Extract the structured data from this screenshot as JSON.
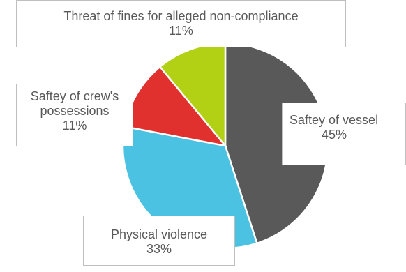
{
  "chart_data": {
    "type": "pie",
    "title": "",
    "slices": [
      {
        "label": "Saftey of vessel",
        "value": 45,
        "pct_label": "45%",
        "color": "#595959"
      },
      {
        "label": "Physical violence",
        "value": 33,
        "pct_label": "33%",
        "color": "#4bc2e1"
      },
      {
        "label": "Saftey of crew's possessions",
        "value": 11,
        "pct_label": "11%",
        "color": "#e0312f"
      },
      {
        "label": "Threat of fines for alleged non-compliance",
        "value": 11,
        "pct_label": "11%",
        "color": "#b2d115"
      }
    ],
    "start": "12 o'clock, clockwise",
    "legend": "none (data labels with leader boxes)"
  },
  "labels": {
    "vessel": {
      "name": "Saftey of vessel",
      "pct": "45%"
    },
    "violence": {
      "name": "Physical violence",
      "pct": "33%"
    },
    "crew_line1": "Saftey of crew's",
    "crew_line2": "possessions",
    "crew_pct": "11%",
    "fines": {
      "name": "Threat of fines for alleged non-compliance",
      "pct": "11%"
    }
  }
}
